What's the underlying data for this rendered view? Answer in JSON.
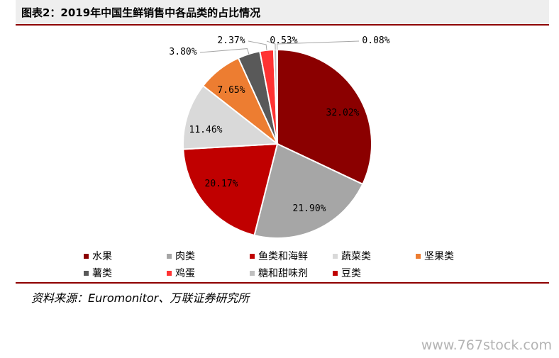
{
  "header": {
    "title": "图表2：2019年中国生鲜销售中各品类的占比情况"
  },
  "chart_data": {
    "type": "pie",
    "title": "图表2：2019年中国生鲜销售中各品类的占比情况",
    "legend_position": "bottom",
    "slices": [
      {
        "name": "水果",
        "value": 32.02,
        "label": "32.02%",
        "color": "#8b0000"
      },
      {
        "name": "肉类",
        "value": 21.9,
        "label": "21.90%",
        "color": "#a6a6a6"
      },
      {
        "name": "鱼类和海鲜",
        "value": 20.17,
        "label": "20.17%",
        "color": "#c00000"
      },
      {
        "name": "蔬菜类",
        "value": 11.46,
        "label": "11.46%",
        "color": "#d9d9d9"
      },
      {
        "name": "坚果类",
        "value": 7.65,
        "label": "7.65%",
        "color": "#ed7d31"
      },
      {
        "name": "薯类",
        "value": 3.8,
        "label": "3.80%",
        "color": "#595959"
      },
      {
        "name": "鸡蛋",
        "value": 2.37,
        "label": "2.37%",
        "color": "#ff3333"
      },
      {
        "name": "糖和甜味剂",
        "value": 0.53,
        "label": "0.53%",
        "color": "#bfbfbf"
      },
      {
        "name": "豆类",
        "value": 0.08,
        "label": "0.08%",
        "color": "#c00000"
      }
    ]
  },
  "legend": {
    "row1": [
      {
        "label": "水果",
        "color": "#8b0000"
      },
      {
        "label": "肉类",
        "color": "#a6a6a6"
      },
      {
        "label": "鱼类和海鲜",
        "color": "#c00000"
      },
      {
        "label": "蔬菜类",
        "color": "#d9d9d9"
      },
      {
        "label": "坚果类",
        "color": "#ed7d31"
      }
    ],
    "row2": [
      {
        "label": "薯类",
        "color": "#595959"
      },
      {
        "label": "鸡蛋",
        "color": "#ff3333"
      },
      {
        "label": "糖和甜味剂",
        "color": "#bfbfbf"
      },
      {
        "label": "豆类",
        "color": "#c00000"
      }
    ]
  },
  "footer": {
    "source": "资料来源：Euromonitor、万联证券研究所"
  },
  "watermark": {
    "text": "www.767stock.com"
  }
}
